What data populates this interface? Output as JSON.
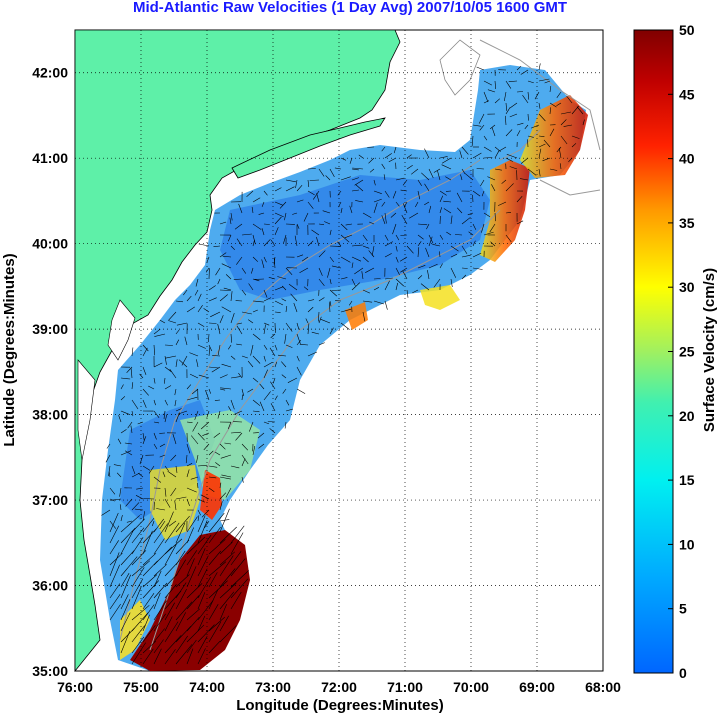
{
  "title": "Mid-Atlantic Raw Velocities (1 Day Avg) 2007/10/05 1600 GMT",
  "axes": {
    "xlabel": "Longitude (Degrees:Minutes)",
    "ylabel": "Latitude (Degrees:Minutes)",
    "x_ticks": [
      "76:00",
      "75:00",
      "74:00",
      "73:00",
      "72:00",
      "71:00",
      "70:00",
      "69:00",
      "68:00"
    ],
    "y_ticks": [
      "42:00",
      "41:00",
      "40:00",
      "39:00",
      "38:00",
      "37:00",
      "36:00",
      "35:00"
    ]
  },
  "colorbar": {
    "label": "Surface Velocity (cm/s)",
    "ticks": [
      "50",
      "45",
      "40",
      "35",
      "30",
      "25",
      "20",
      "15",
      "10",
      "5",
      "0"
    ],
    "min": 0,
    "max": 50,
    "colormap": "jet"
  },
  "colors": {
    "land": "#5ef0a8",
    "title": "#1a1aff",
    "grid": "#000000",
    "bathymetry": "#999999"
  },
  "map": {
    "lon_range": [
      -76,
      -68
    ],
    "lat_range": [
      35,
      42.5
    ],
    "grid": true
  }
}
